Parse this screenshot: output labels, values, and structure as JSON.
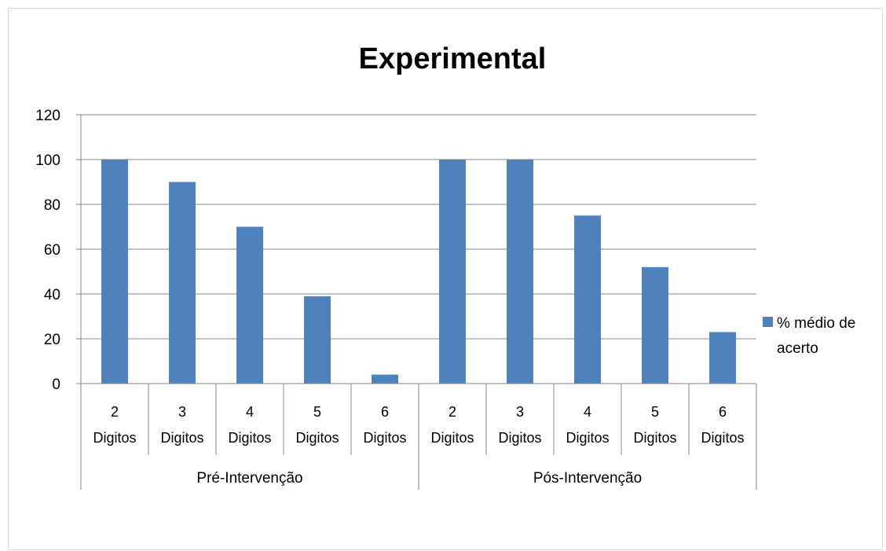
{
  "chart_data": {
    "type": "bar",
    "title": "Experimental",
    "xlabel": "",
    "ylabel": "",
    "ylim": [
      0,
      120
    ],
    "yticks": [
      0,
      20,
      40,
      60,
      80,
      100,
      120
    ],
    "groups": [
      {
        "label": "Pré-Intervenção",
        "categories": [
          "2 Digitos",
          "3 Digitos",
          "4 Digitos",
          "5 Digitos",
          "6 Digitos"
        ]
      },
      {
        "label": "Pós-Intervenção",
        "categories": [
          "2 Digitos",
          "3 Digitos",
          "4 Digitos",
          "5 Digitos",
          "6 Digitos"
        ]
      }
    ],
    "categories": [
      [
        "2",
        "Digitos"
      ],
      [
        "3",
        "Digitos"
      ],
      [
        "4",
        "Digitos"
      ],
      [
        "5",
        "Digitos"
      ],
      [
        "6",
        "Digitos"
      ],
      [
        "2",
        "Digitos"
      ],
      [
        "3",
        "Digitos"
      ],
      [
        "4",
        "Digitos"
      ],
      [
        "5",
        "Digitos"
      ],
      [
        "6",
        "Digitos"
      ]
    ],
    "series": [
      {
        "name": "% médio de acerto",
        "values": [
          100,
          90,
          70,
          39,
          4,
          100,
          100,
          75,
          52,
          23
        ]
      }
    ],
    "legend": {
      "position": "right",
      "lines": [
        "% médio de",
        "acerto"
      ]
    },
    "grid": true,
    "color": "#4f81bd"
  }
}
